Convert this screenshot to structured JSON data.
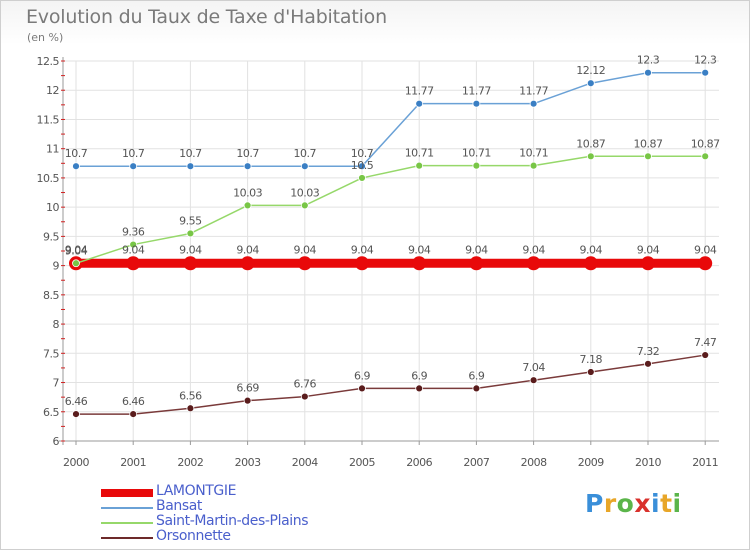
{
  "title": "Evolution du Taux de Taxe d'Habitation",
  "subtitle": "(en %)",
  "logo": {
    "letters": [
      "P",
      "r",
      "o",
      "x",
      "i",
      "t",
      "i"
    ],
    "colors": [
      "#3a8fd9",
      "#e8a628",
      "#5bb54a",
      "#d9312c",
      "#3a8fd9",
      "#e8a628",
      "#5bb54a"
    ]
  },
  "chart_data": {
    "type": "line",
    "title": "Evolution du Taux de Taxe d'Habitation",
    "ylabel": "(en %)",
    "x": [
      "2000",
      "2001",
      "2002",
      "2003",
      "2004",
      "2005",
      "2006",
      "2007",
      "2008",
      "2009",
      "2010",
      "2011"
    ],
    "ylim": [
      6,
      12.5
    ],
    "yticks": [
      "6",
      "6.5",
      "7",
      "7.5",
      "8",
      "8.5",
      "9",
      "9.5",
      "10",
      "10.5",
      "11",
      "11.5",
      "12",
      "12.5"
    ],
    "grid": true,
    "legend_position": "bottom-left",
    "series": [
      {
        "name": "LAMONTGIE",
        "color": "#e8090a",
        "values": [
          9.04,
          9.04,
          9.04,
          9.04,
          9.04,
          9.04,
          9.04,
          9.04,
          9.04,
          9.04,
          9.04,
          9.04
        ],
        "labels": [
          "9.04",
          "9.04",
          "9.04",
          "9.04",
          "9.04",
          "9.04",
          "9.04",
          "9.04",
          "9.04",
          "9.04",
          "9.04",
          "9.04"
        ]
      },
      {
        "name": "Bansat",
        "color": "#6aa1d6",
        "values": [
          10.7,
          10.7,
          10.7,
          10.7,
          10.7,
          10.7,
          11.77,
          11.77,
          11.77,
          12.12,
          12.3,
          12.3
        ],
        "labels": [
          "10.7",
          "10.7",
          "10.7",
          "10.7",
          "10.7",
          "10.7",
          "11.77",
          "11.77",
          "11.77",
          "12.12",
          "12.3",
          "12.3"
        ]
      },
      {
        "name": "Saint-Martin-des-Plains",
        "color": "#96d86a",
        "values": [
          9.04,
          9.36,
          9.55,
          10.03,
          10.03,
          10.5,
          10.71,
          10.71,
          10.71,
          10.87,
          10.87,
          10.87
        ],
        "labels": [
          "9.04",
          "9.36",
          "9.55",
          "10.03",
          "10.03",
          "10.5",
          "10.71",
          "10.71",
          "10.71",
          "10.87",
          "10.87",
          "10.87"
        ]
      },
      {
        "name": "Orsonnette",
        "color": "#6d2a2a",
        "values": [
          6.46,
          6.46,
          6.56,
          6.69,
          6.76,
          6.9,
          6.9,
          6.9,
          7.04,
          7.18,
          7.32,
          7.47
        ],
        "labels": [
          "6.46",
          "6.46",
          "6.56",
          "6.69",
          "6.76",
          "6.9",
          "6.9",
          "6.9",
          "7.04",
          "7.18",
          "7.32",
          "7.47"
        ]
      }
    ]
  }
}
